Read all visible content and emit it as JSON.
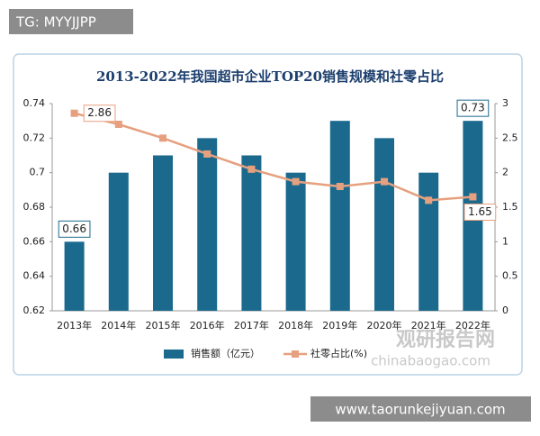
{
  "chart_data": {
    "type": "bar",
    "title": "2013-2022年我国超市企业TOP20销售规模和社零占比",
    "categories": [
      "2013年",
      "2014年",
      "2015年",
      "2016年",
      "2017年",
      "2018年",
      "2019年",
      "2020年",
      "2021年",
      "2022年"
    ],
    "series": [
      {
        "name": "销售额（亿元）",
        "type": "bar",
        "color": "#1b6a8e",
        "values": [
          0.66,
          0.7,
          0.71,
          0.72,
          0.71,
          0.7,
          0.73,
          0.72,
          0.7,
          0.73
        ],
        "value_labels": [
          "0.66",
          null,
          null,
          null,
          null,
          null,
          null,
          null,
          null,
          "0.73"
        ]
      },
      {
        "name": "社零占比(%)",
        "type": "line",
        "axis": "y2",
        "color": "#e6a07f",
        "values": [
          2.86,
          2.7,
          2.5,
          2.27,
          2.05,
          1.87,
          1.8,
          1.87,
          1.6,
          1.65
        ],
        "value_labels": [
          "2.86",
          null,
          null,
          null,
          null,
          null,
          null,
          null,
          null,
          "1.65"
        ]
      }
    ],
    "ylim": [
      0.62,
      0.74
    ],
    "yticks": [
      0.62,
      0.64,
      0.66,
      0.68,
      {
        "value": 0.7,
        "label": "0.7"
      },
      0.72,
      0.74
    ],
    "y2lim": [
      0,
      3
    ],
    "y2ticks": [
      0,
      0.5,
      1,
      1.5,
      2,
      2.5,
      3
    ],
    "grid": false,
    "legend": "bottom"
  },
  "overlays": {
    "tag": "TG: MYYJJPP",
    "brand": "观研报告网",
    "brand_url": "chinabaogao.com",
    "footer": "www.taorunkejiyuan.com"
  }
}
